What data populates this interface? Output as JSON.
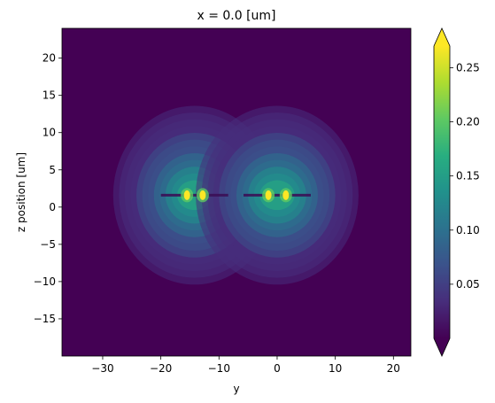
{
  "chart_data": {
    "type": "heatmap",
    "title": "x = 0.0 [um]",
    "xlabel": "y",
    "ylabel": "z position [um]",
    "xlim": [
      -37,
      23
    ],
    "ylim": [
      -20,
      24
    ],
    "x_ticks": [
      -30,
      -20,
      -10,
      0,
      10,
      20
    ],
    "y_ticks": [
      -15,
      -10,
      -5,
      0,
      5,
      10,
      15,
      20
    ],
    "colormap": "viridis",
    "colorbar": {
      "range": [
        0.0,
        0.27
      ],
      "ticks": [
        0.05,
        0.1,
        0.15,
        0.2,
        0.25
      ],
      "tick_labels": [
        "0.05",
        "0.10",
        "0.15",
        "0.20",
        "0.25"
      ],
      "extend": "both"
    },
    "hotspots": [
      {
        "y": -15.5,
        "z": 1.6,
        "value": 0.27
      },
      {
        "y": -12.8,
        "z": 1.6,
        "value": 0.27
      },
      {
        "y": -1.5,
        "z": 1.6,
        "value": 0.27
      },
      {
        "y": 1.5,
        "z": 1.6,
        "value": 0.27
      }
    ],
    "glow_regions": [
      {
        "y": -14.2,
        "z": 1.6,
        "peak": 0.16
      },
      {
        "y": 0.0,
        "z": 1.6,
        "peak": 0.16
      }
    ],
    "background_level": 0.02
  }
}
